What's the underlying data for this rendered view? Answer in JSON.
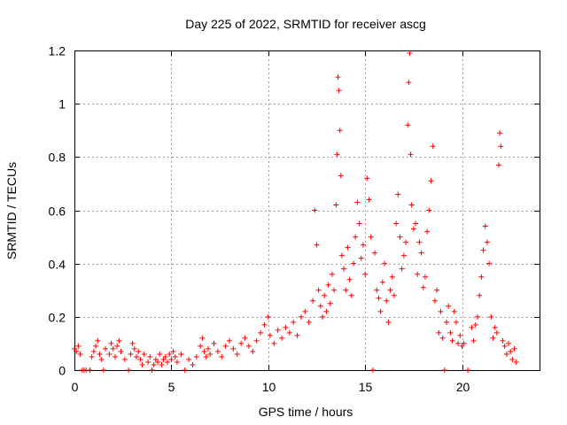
{
  "chart_data": {
    "type": "scatter",
    "title": "Day 225 of 2022, SRMTID for receiver ascg",
    "xlabel": "GPS time / hours",
    "ylabel": "SRMTID / TECUs",
    "xlim": [
      0,
      24
    ],
    "ylim": [
      0,
      1.2
    ],
    "xticks": [
      0,
      5,
      10,
      15,
      20
    ],
    "xtick_labels": [
      "0",
      "5",
      "10",
      "15",
      "20"
    ],
    "yticks": [
      0,
      0.2,
      0.4,
      0.6,
      0.8,
      1.0,
      1.2
    ],
    "ytick_labels": [
      "0",
      "0.2",
      "0.4",
      "0.6",
      "0.8",
      "1",
      "1.2"
    ],
    "grid": true,
    "series": [
      {
        "name": "SRMTID",
        "marker": "+",
        "color": "#ff0000",
        "points": [
          [
            0.0,
            0.08
          ],
          [
            0.1,
            0.07
          ],
          [
            0.2,
            0.09
          ],
          [
            0.3,
            0.06
          ],
          [
            0.4,
            0.0
          ],
          [
            0.5,
            0.0
          ],
          [
            0.6,
            0.0
          ],
          [
            0.8,
            0.0
          ],
          [
            0.9,
            0.05
          ],
          [
            1.0,
            0.07
          ],
          [
            1.1,
            0.09
          ],
          [
            1.2,
            0.11
          ],
          [
            1.3,
            0.06
          ],
          [
            1.4,
            0.04
          ],
          [
            1.5,
            0.0
          ],
          [
            1.6,
            0.08
          ],
          [
            1.8,
            0.06
          ],
          [
            1.9,
            0.1
          ],
          [
            2.0,
            0.08
          ],
          [
            2.1,
            0.05
          ],
          [
            2.2,
            0.09
          ],
          [
            2.3,
            0.11
          ],
          [
            2.4,
            0.07
          ],
          [
            2.6,
            0.04
          ],
          [
            2.8,
            0.0
          ],
          [
            2.9,
            0.06
          ],
          [
            3.0,
            0.1
          ],
          [
            3.1,
            0.08
          ],
          [
            3.2,
            0.05
          ],
          [
            3.3,
            0.07
          ],
          [
            3.4,
            0.04
          ],
          [
            3.5,
            0.02
          ],
          [
            3.6,
            0.06
          ],
          [
            3.8,
            0.03
          ],
          [
            3.9,
            0.05
          ],
          [
            4.0,
            0.0
          ],
          [
            4.1,
            0.02
          ],
          [
            4.2,
            0.04
          ],
          [
            4.3,
            0.03
          ],
          [
            4.4,
            0.06
          ],
          [
            4.5,
            0.02
          ],
          [
            4.6,
            0.04
          ],
          [
            4.7,
            0.05
          ],
          [
            4.8,
            0.03
          ],
          [
            4.9,
            0.06
          ],
          [
            5.0,
            0.04
          ],
          [
            5.1,
            0.07
          ],
          [
            5.2,
            0.05
          ],
          [
            5.3,
            0.03
          ],
          [
            5.5,
            0.06
          ],
          [
            5.7,
            0.0
          ],
          [
            5.9,
            0.04
          ],
          [
            6.1,
            0.02
          ],
          [
            6.3,
            0.05
          ],
          [
            6.5,
            0.09
          ],
          [
            6.6,
            0.12
          ],
          [
            6.7,
            0.07
          ],
          [
            6.8,
            0.05
          ],
          [
            6.9,
            0.08
          ],
          [
            7.0,
            0.06
          ],
          [
            7.2,
            0.1
          ],
          [
            7.4,
            0.07
          ],
          [
            7.6,
            0.05
          ],
          [
            7.8,
            0.09
          ],
          [
            8.0,
            0.11
          ],
          [
            8.2,
            0.08
          ],
          [
            8.4,
            0.06
          ],
          [
            8.6,
            0.1
          ],
          [
            8.8,
            0.12
          ],
          [
            9.0,
            0.09
          ],
          [
            9.2,
            0.07
          ],
          [
            9.4,
            0.11
          ],
          [
            9.6,
            0.14
          ],
          [
            9.8,
            0.17
          ],
          [
            10.0,
            0.2
          ],
          [
            10.1,
            0.13
          ],
          [
            10.3,
            0.1
          ],
          [
            10.5,
            0.15
          ],
          [
            10.7,
            0.12
          ],
          [
            10.9,
            0.16
          ],
          [
            11.1,
            0.14
          ],
          [
            11.3,
            0.18
          ],
          [
            11.5,
            0.13
          ],
          [
            11.7,
            0.2
          ],
          [
            11.9,
            0.22
          ],
          [
            12.1,
            0.18
          ],
          [
            12.3,
            0.26
          ],
          [
            12.4,
            0.6
          ],
          [
            12.5,
            0.47
          ],
          [
            12.6,
            0.3
          ],
          [
            12.7,
            0.24
          ],
          [
            12.8,
            0.2
          ],
          [
            12.9,
            0.28
          ],
          [
            13.0,
            0.22
          ],
          [
            13.1,
            0.32
          ],
          [
            13.2,
            0.25
          ],
          [
            13.3,
            0.36
          ],
          [
            13.4,
            0.3
          ],
          [
            13.5,
            0.62
          ],
          [
            13.55,
            0.81
          ],
          [
            13.6,
            1.1
          ],
          [
            13.65,
            1.05
          ],
          [
            13.7,
            0.9
          ],
          [
            13.75,
            0.73
          ],
          [
            13.8,
            0.43
          ],
          [
            13.9,
            0.38
          ],
          [
            14.0,
            0.3
          ],
          [
            14.1,
            0.46
          ],
          [
            14.2,
            0.34
          ],
          [
            14.3,
            0.28
          ],
          [
            14.4,
            0.4
          ],
          [
            14.5,
            0.5
          ],
          [
            14.6,
            0.63
          ],
          [
            14.7,
            0.55
          ],
          [
            14.8,
            0.42
          ],
          [
            14.9,
            0.47
          ],
          [
            15.0,
            0.36
          ],
          [
            15.1,
            0.72
          ],
          [
            15.2,
            0.64
          ],
          [
            15.3,
            0.5
          ],
          [
            15.4,
            0.0
          ],
          [
            15.5,
            0.44
          ],
          [
            15.6,
            0.3
          ],
          [
            15.7,
            0.27
          ],
          [
            15.8,
            0.22
          ],
          [
            15.9,
            0.33
          ],
          [
            16.0,
            0.4
          ],
          [
            16.1,
            0.26
          ],
          [
            16.2,
            0.18
          ],
          [
            16.3,
            0.3
          ],
          [
            16.4,
            0.35
          ],
          [
            16.5,
            0.28
          ],
          [
            16.6,
            0.55
          ],
          [
            16.7,
            0.66
          ],
          [
            16.8,
            0.5
          ],
          [
            16.9,
            0.38
          ],
          [
            17.0,
            0.43
          ],
          [
            17.1,
            0.48
          ],
          [
            17.2,
            0.92
          ],
          [
            17.25,
            1.08
          ],
          [
            17.3,
            1.19
          ],
          [
            17.35,
            0.81
          ],
          [
            17.4,
            0.62
          ],
          [
            17.5,
            0.53
          ],
          [
            17.6,
            0.55
          ],
          [
            17.7,
            0.36
          ],
          [
            17.8,
            0.48
          ],
          [
            17.9,
            0.44
          ],
          [
            18.0,
            0.31
          ],
          [
            18.1,
            0.35
          ],
          [
            18.2,
            0.52
          ],
          [
            18.3,
            0.6
          ],
          [
            18.4,
            0.71
          ],
          [
            18.5,
            0.84
          ],
          [
            18.6,
            0.26
          ],
          [
            18.7,
            0.3
          ],
          [
            18.8,
            0.14
          ],
          [
            18.9,
            0.22
          ],
          [
            19.0,
            0.12
          ],
          [
            19.1,
            0.0
          ],
          [
            19.2,
            0.18
          ],
          [
            19.3,
            0.24
          ],
          [
            19.4,
            0.14
          ],
          [
            19.5,
            0.11
          ],
          [
            19.6,
            0.22
          ],
          [
            19.7,
            0.18
          ],
          [
            19.8,
            0.1
          ],
          [
            19.9,
            0.13
          ],
          [
            20.0,
            0.09
          ],
          [
            20.1,
            0.1
          ],
          [
            20.3,
            0.0
          ],
          [
            20.5,
            0.16
          ],
          [
            20.6,
            0.11
          ],
          [
            20.7,
            0.17
          ],
          [
            20.8,
            0.2
          ],
          [
            20.9,
            0.28
          ],
          [
            21.0,
            0.35
          ],
          [
            21.1,
            0.45
          ],
          [
            21.2,
            0.54
          ],
          [
            21.3,
            0.48
          ],
          [
            21.4,
            0.4
          ],
          [
            21.5,
            0.2
          ],
          [
            21.6,
            0.12
          ],
          [
            21.7,
            0.16
          ],
          [
            21.8,
            0.14
          ],
          [
            21.9,
            0.77
          ],
          [
            21.95,
            0.89
          ],
          [
            22.0,
            0.84
          ],
          [
            22.1,
            0.11
          ],
          [
            22.2,
            0.09
          ],
          [
            22.3,
            0.06
          ],
          [
            22.4,
            0.1
          ],
          [
            22.5,
            0.07
          ],
          [
            22.6,
            0.04
          ],
          [
            22.7,
            0.08
          ],
          [
            22.8,
            0.03
          ]
        ]
      }
    ]
  }
}
